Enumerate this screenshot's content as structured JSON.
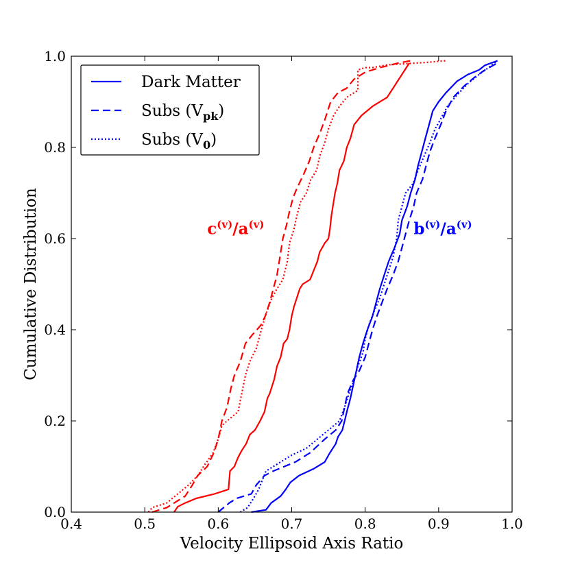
{
  "chart_data": {
    "type": "line",
    "title": "",
    "xlabel": "Velocity Ellipsoid Axis Ratio",
    "ylabel": "Cumulative Distribution",
    "xlim": [
      0.4,
      1.0
    ],
    "ylim": [
      0.0,
      1.0
    ],
    "xticks": [
      "0.4",
      "0.5",
      "0.6",
      "0.7",
      "0.8",
      "0.9",
      "1.0"
    ],
    "yticks": [
      "0.0",
      "0.2",
      "0.4",
      "0.6",
      "0.8",
      "1.0"
    ],
    "grid": false,
    "legend": {
      "placement": "top-left",
      "entries": [
        {
          "main": "Dark Matter",
          "sub": "",
          "close": "",
          "style": "solid"
        },
        {
          "main": "Subs (V",
          "sub": "pk",
          "close": ")",
          "style": "dashed"
        },
        {
          "main": "Subs (V",
          "sub": "0",
          "close": ")",
          "style": "dotted"
        }
      ]
    },
    "annotations": [
      {
        "base1": "c",
        "sup1": "(v)",
        "slash": "/",
        "base2": "a",
        "sup2": "(v)",
        "color": "#ff0000",
        "x": 0.585,
        "y": 0.61
      },
      {
        "base1": "b",
        "sup1": "(v)",
        "slash": "/",
        "base2": "a",
        "sup2": "(v)",
        "color": "#0000ff",
        "x": 0.866,
        "y": 0.61
      }
    ],
    "series": [
      {
        "name": "c/a Dark Matter",
        "color": "#ff0000",
        "style": "solid",
        "points": [
          [
            0.54,
            0.0
          ],
          [
            0.545,
            0.012
          ],
          [
            0.555,
            0.02
          ],
          [
            0.57,
            0.03
          ],
          [
            0.595,
            0.04
          ],
          [
            0.614,
            0.05
          ],
          [
            0.616,
            0.09
          ],
          [
            0.622,
            0.1
          ],
          [
            0.627,
            0.12
          ],
          [
            0.632,
            0.135
          ],
          [
            0.638,
            0.15
          ],
          [
            0.643,
            0.17
          ],
          [
            0.65,
            0.18
          ],
          [
            0.657,
            0.2
          ],
          [
            0.663,
            0.22
          ],
          [
            0.667,
            0.25
          ],
          [
            0.67,
            0.26
          ],
          [
            0.676,
            0.29
          ],
          [
            0.68,
            0.32
          ],
          [
            0.685,
            0.34
          ],
          [
            0.689,
            0.37
          ],
          [
            0.694,
            0.38
          ],
          [
            0.697,
            0.4
          ],
          [
            0.7,
            0.43
          ],
          [
            0.703,
            0.45
          ],
          [
            0.707,
            0.47
          ],
          [
            0.711,
            0.49
          ],
          [
            0.715,
            0.5
          ],
          [
            0.725,
            0.51
          ],
          [
            0.73,
            0.53
          ],
          [
            0.735,
            0.55
          ],
          [
            0.738,
            0.57
          ],
          [
            0.745,
            0.59
          ],
          [
            0.75,
            0.6
          ],
          [
            0.752,
            0.62
          ],
          [
            0.754,
            0.65
          ],
          [
            0.756,
            0.67
          ],
          [
            0.759,
            0.7
          ],
          [
            0.762,
            0.72
          ],
          [
            0.765,
            0.75
          ],
          [
            0.771,
            0.77
          ],
          [
            0.775,
            0.8
          ],
          [
            0.78,
            0.82
          ],
          [
            0.785,
            0.85
          ],
          [
            0.795,
            0.87
          ],
          [
            0.81,
            0.89
          ],
          [
            0.83,
            0.91
          ],
          [
            0.85,
            0.96
          ],
          [
            0.86,
            0.985
          ]
        ]
      },
      {
        "name": "c/a Subs (Vpk)",
        "color": "#ff0000",
        "style": "dashed",
        "points": [
          [
            0.51,
            0.0
          ],
          [
            0.53,
            0.01
          ],
          [
            0.555,
            0.035
          ],
          [
            0.565,
            0.06
          ],
          [
            0.572,
            0.08
          ],
          [
            0.585,
            0.1
          ],
          [
            0.594,
            0.13
          ],
          [
            0.6,
            0.16
          ],
          [
            0.605,
            0.2
          ],
          [
            0.612,
            0.23
          ],
          [
            0.617,
            0.27
          ],
          [
            0.622,
            0.3
          ],
          [
            0.63,
            0.33
          ],
          [
            0.637,
            0.37
          ],
          [
            0.647,
            0.39
          ],
          [
            0.658,
            0.41
          ],
          [
            0.664,
            0.43
          ],
          [
            0.67,
            0.46
          ],
          [
            0.675,
            0.49
          ],
          [
            0.68,
            0.52
          ],
          [
            0.684,
            0.56
          ],
          [
            0.688,
            0.6
          ],
          [
            0.693,
            0.63
          ],
          [
            0.697,
            0.66
          ],
          [
            0.702,
            0.69
          ],
          [
            0.707,
            0.71
          ],
          [
            0.716,
            0.74
          ],
          [
            0.724,
            0.77
          ],
          [
            0.73,
            0.8
          ],
          [
            0.738,
            0.83
          ],
          [
            0.745,
            0.86
          ],
          [
            0.753,
            0.9
          ],
          [
            0.763,
            0.92
          ],
          [
            0.775,
            0.93
          ],
          [
            0.785,
            0.95
          ],
          [
            0.8,
            0.965
          ],
          [
            0.82,
            0.975
          ],
          [
            0.845,
            0.985
          ],
          [
            0.862,
            0.99
          ]
        ]
      },
      {
        "name": "c/a Subs (V0)",
        "color": "#ff0000",
        "style": "dotted",
        "points": [
          [
            0.505,
            0.0
          ],
          [
            0.51,
            0.01
          ],
          [
            0.53,
            0.02
          ],
          [
            0.545,
            0.04
          ],
          [
            0.56,
            0.06
          ],
          [
            0.572,
            0.08
          ],
          [
            0.58,
            0.1
          ],
          [
            0.593,
            0.13
          ],
          [
            0.6,
            0.16
          ],
          [
            0.605,
            0.19
          ],
          [
            0.612,
            0.2
          ],
          [
            0.627,
            0.22
          ],
          [
            0.632,
            0.26
          ],
          [
            0.637,
            0.3
          ],
          [
            0.643,
            0.33
          ],
          [
            0.652,
            0.36
          ],
          [
            0.657,
            0.39
          ],
          [
            0.664,
            0.43
          ],
          [
            0.673,
            0.47
          ],
          [
            0.68,
            0.49
          ],
          [
            0.688,
            0.51
          ],
          [
            0.694,
            0.55
          ],
          [
            0.697,
            0.59
          ],
          [
            0.703,
            0.62
          ],
          [
            0.707,
            0.65
          ],
          [
            0.712,
            0.68
          ],
          [
            0.72,
            0.7
          ],
          [
            0.726,
            0.73
          ],
          [
            0.734,
            0.75
          ],
          [
            0.738,
            0.78
          ],
          [
            0.745,
            0.81
          ],
          [
            0.75,
            0.84
          ],
          [
            0.757,
            0.87
          ],
          [
            0.765,
            0.89
          ],
          [
            0.775,
            0.91
          ],
          [
            0.79,
            0.925
          ],
          [
            0.79,
            0.97
          ],
          [
            0.8,
            0.975
          ],
          [
            0.81,
            0.975
          ],
          [
            0.82,
            0.978
          ],
          [
            0.83,
            0.981
          ],
          [
            0.85,
            0.983
          ],
          [
            0.88,
            0.986
          ],
          [
            0.91,
            0.99
          ]
        ]
      },
      {
        "name": "b/a Dark Matter",
        "color": "#0000ff",
        "style": "solid",
        "points": [
          [
            0.645,
            0.0
          ],
          [
            0.665,
            0.005
          ],
          [
            0.672,
            0.02
          ],
          [
            0.685,
            0.035
          ],
          [
            0.692,
            0.05
          ],
          [
            0.698,
            0.065
          ],
          [
            0.71,
            0.08
          ],
          [
            0.73,
            0.095
          ],
          [
            0.745,
            0.11
          ],
          [
            0.752,
            0.13
          ],
          [
            0.76,
            0.15
          ],
          [
            0.763,
            0.165
          ],
          [
            0.769,
            0.18
          ],
          [
            0.772,
            0.2
          ],
          [
            0.775,
            0.22
          ],
          [
            0.78,
            0.25
          ],
          [
            0.784,
            0.28
          ],
          [
            0.788,
            0.31
          ],
          [
            0.792,
            0.34
          ],
          [
            0.797,
            0.37
          ],
          [
            0.803,
            0.4
          ],
          [
            0.81,
            0.43
          ],
          [
            0.815,
            0.46
          ],
          [
            0.82,
            0.49
          ],
          [
            0.826,
            0.52
          ],
          [
            0.832,
            0.55
          ],
          [
            0.84,
            0.58
          ],
          [
            0.847,
            0.61
          ],
          [
            0.85,
            0.64
          ],
          [
            0.857,
            0.67
          ],
          [
            0.862,
            0.7
          ],
          [
            0.868,
            0.73
          ],
          [
            0.872,
            0.76
          ],
          [
            0.877,
            0.79
          ],
          [
            0.882,
            0.82
          ],
          [
            0.887,
            0.85
          ],
          [
            0.892,
            0.88
          ],
          [
            0.9,
            0.9
          ],
          [
            0.91,
            0.92
          ],
          [
            0.925,
            0.945
          ],
          [
            0.94,
            0.96
          ],
          [
            0.955,
            0.97
          ],
          [
            0.963,
            0.98
          ],
          [
            0.98,
            0.99
          ]
        ]
      },
      {
        "name": "b/a Subs (Vpk)",
        "color": "#0000ff",
        "style": "dashed",
        "points": [
          [
            0.6,
            0.0
          ],
          [
            0.615,
            0.02
          ],
          [
            0.625,
            0.03
          ],
          [
            0.645,
            0.04
          ],
          [
            0.652,
            0.06
          ],
          [
            0.663,
            0.08
          ],
          [
            0.675,
            0.09
          ],
          [
            0.69,
            0.1
          ],
          [
            0.705,
            0.11
          ],
          [
            0.725,
            0.13
          ],
          [
            0.745,
            0.16
          ],
          [
            0.76,
            0.18
          ],
          [
            0.768,
            0.2
          ],
          [
            0.772,
            0.23
          ],
          [
            0.776,
            0.26
          ],
          [
            0.784,
            0.29
          ],
          [
            0.792,
            0.31
          ],
          [
            0.8,
            0.34
          ],
          [
            0.805,
            0.37
          ],
          [
            0.81,
            0.4
          ],
          [
            0.816,
            0.43
          ],
          [
            0.823,
            0.46
          ],
          [
            0.83,
            0.49
          ],
          [
            0.838,
            0.52
          ],
          [
            0.845,
            0.55
          ],
          [
            0.85,
            0.58
          ],
          [
            0.855,
            0.61
          ],
          [
            0.86,
            0.64
          ],
          [
            0.866,
            0.67
          ],
          [
            0.87,
            0.7
          ],
          [
            0.878,
            0.73
          ],
          [
            0.883,
            0.76
          ],
          [
            0.888,
            0.79
          ],
          [
            0.895,
            0.82
          ],
          [
            0.903,
            0.85
          ],
          [
            0.91,
            0.88
          ],
          [
            0.92,
            0.91
          ],
          [
            0.935,
            0.935
          ],
          [
            0.95,
            0.955
          ],
          [
            0.963,
            0.97
          ],
          [
            0.98,
            0.985
          ]
        ]
      },
      {
        "name": "b/a Subs (V0)",
        "color": "#0000ff",
        "style": "dotted",
        "points": [
          [
            0.63,
            0.0
          ],
          [
            0.64,
            0.01
          ],
          [
            0.648,
            0.03
          ],
          [
            0.655,
            0.05
          ],
          [
            0.66,
            0.07
          ],
          [
            0.665,
            0.09
          ],
          [
            0.675,
            0.1
          ],
          [
            0.685,
            0.11
          ],
          [
            0.7,
            0.125
          ],
          [
            0.72,
            0.14
          ],
          [
            0.735,
            0.16
          ],
          [
            0.75,
            0.18
          ],
          [
            0.765,
            0.2
          ],
          [
            0.772,
            0.23
          ],
          [
            0.778,
            0.26
          ],
          [
            0.785,
            0.29
          ],
          [
            0.79,
            0.32
          ],
          [
            0.797,
            0.35
          ],
          [
            0.8,
            0.38
          ],
          [
            0.805,
            0.41
          ],
          [
            0.812,
            0.44
          ],
          [
            0.82,
            0.47
          ],
          [
            0.826,
            0.5
          ],
          [
            0.832,
            0.53
          ],
          [
            0.838,
            0.56
          ],
          [
            0.843,
            0.6
          ],
          [
            0.845,
            0.64
          ],
          [
            0.85,
            0.67
          ],
          [
            0.855,
            0.7
          ],
          [
            0.865,
            0.72
          ],
          [
            0.872,
            0.75
          ],
          [
            0.88,
            0.78
          ],
          [
            0.888,
            0.81
          ],
          [
            0.895,
            0.84
          ],
          [
            0.902,
            0.86
          ],
          [
            0.912,
            0.89
          ],
          [
            0.925,
            0.915
          ],
          [
            0.94,
            0.94
          ],
          [
            0.955,
            0.96
          ],
          [
            0.968,
            0.975
          ],
          [
            0.98,
            0.99
          ]
        ]
      }
    ]
  }
}
